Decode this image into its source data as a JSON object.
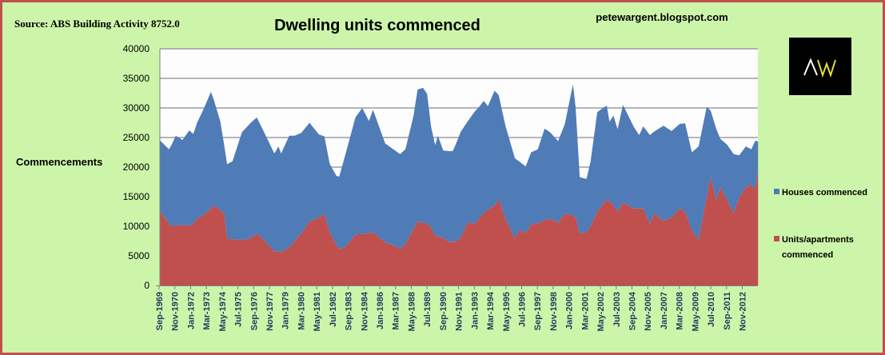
{
  "chart_data": {
    "type": "area",
    "stacked": true,
    "title": "Dwelling units commenced",
    "source": "Source: ABS Building Activity 8752.0",
    "watermark": "petewargent.blogspot.com",
    "logo_text": "AW",
    "ylabel": "Commencements",
    "xlabel": "",
    "ylim": [
      0,
      40000
    ],
    "yticks": [
      0,
      5000,
      10000,
      15000,
      20000,
      25000,
      30000,
      35000,
      40000
    ],
    "grid": true,
    "legend_position": "right",
    "xtick_labels": [
      "Sep-1969",
      "Nov-1970",
      "Jan-1972",
      "Mar-1973",
      "May-1974",
      "Jul-1975",
      "Sep-1976",
      "Nov-1977",
      "Jan-1979",
      "Mar-1980",
      "May-1981",
      "Jul-1982",
      "Sep-1983",
      "Nov-1984",
      "Jan-1986",
      "Mar-1987",
      "May-1988",
      "Jul-1989",
      "Sep-1990",
      "Nov-1991",
      "Jan-1993",
      "Mar-1994",
      "May-1995",
      "Jul-1996",
      "Sep-1997",
      "Nov-1998",
      "Jan-2000",
      "Mar-2001",
      "May-2002",
      "Jul-2003",
      "Sep-2004",
      "Nov-2005",
      "Jan-2007",
      "Mar-2008",
      "May-2009",
      "Jul-2010",
      "Sep-2011",
      "Nov-2012"
    ],
    "x": [
      1969.7,
      1970.4,
      1970.6,
      1970.9,
      1971.4,
      1971.9,
      1972.2,
      1972.5,
      1973.0,
      1973.5,
      1973.7,
      1974.2,
      1974.5,
      1974.7,
      1975.1,
      1975.8,
      1976.5,
      1976.9,
      1977.5,
      1978.2,
      1978.5,
      1978.7,
      1979.3,
      1979.7,
      1980.2,
      1980.8,
      1981.5,
      1981.9,
      1982.3,
      1982.8,
      1983.0,
      1983.5,
      1984.2,
      1984.7,
      1985.2,
      1985.5,
      1986.4,
      1987.2,
      1987.5,
      1987.9,
      1988.5,
      1988.8,
      1989.2,
      1989.5,
      1989.8,
      1990.1,
      1990.3,
      1990.7,
      1991.1,
      1991.4,
      1991.6,
      1992.0,
      1992.5,
      1993.0,
      1993.4,
      1993.7,
      1994.0,
      1994.5,
      1994.8,
      1995.3,
      1996.0,
      1996.3,
      1996.8,
      1997.2,
      1997.7,
      1998.2,
      1998.6,
      1999.2,
      1999.7,
      2000.3,
      2000.5,
      2000.8,
      2001.3,
      2001.6,
      2002.1,
      2002.8,
      2003.0,
      2003.3,
      2003.6,
      2004.0,
      2004.8,
      2005.2,
      2005.5,
      2006.0,
      2006.3,
      2007.0,
      2007.6,
      2008.2,
      2008.6,
      2009.1,
      2009.6,
      2010.2,
      2010.5,
      2010.9,
      2011.2,
      2011.7,
      2012.2,
      2012.6,
      2013.1,
      2013.5,
      2013.8,
      2014.0
    ],
    "series": [
      {
        "name": "Units/apartments commenced",
        "color": "#c0504d",
        "values": [
          12700,
          10500,
          10000,
          10100,
          10200,
          10100,
          10500,
          11300,
          12000,
          13000,
          13500,
          12800,
          12000,
          8000,
          7800,
          7700,
          8000,
          8800,
          7500,
          5700,
          5800,
          5600,
          6400,
          7500,
          8800,
          10800,
          11500,
          12000,
          9000,
          6800,
          6100,
          6600,
          8600,
          8700,
          8800,
          9000,
          7300,
          6600,
          6100,
          7000,
          9500,
          10800,
          10600,
          10400,
          9800,
          8400,
          8300,
          8000,
          7400,
          7400,
          7400,
          8100,
          10600,
          10400,
          11500,
          12200,
          12800,
          13500,
          14600,
          11300,
          7900,
          9300,
          8900,
          10300,
          10500,
          11000,
          11300,
          10600,
          12200,
          11800,
          11500,
          8800,
          9000,
          10000,
          12500,
          14500,
          14300,
          13500,
          12500,
          14000,
          13000,
          13000,
          13000,
          10400,
          12200,
          10900,
          11500,
          13000,
          12500,
          9300,
          7700,
          15000,
          18400,
          14400,
          16600,
          14500,
          12200,
          14900,
          16600,
          17100,
          16200,
          19600
        ]
      },
      {
        "name": "Houses commenced",
        "color": "#4f7bb7",
        "values": [
          11900,
          12500,
          13800,
          15200,
          14400,
          16100,
          15100,
          16300,
          18000,
          19700,
          18000,
          14900,
          11500,
          12500,
          13200,
          18200,
          19600,
          19600,
          18100,
          16600,
          17700,
          16700,
          18900,
          17800,
          17000,
          16700,
          14000,
          13200,
          11500,
          11700,
          12300,
          15900,
          19800,
          21300,
          19000,
          20700,
          16700,
          16100,
          16100,
          16000,
          19200,
          22300,
          22800,
          22000,
          17000,
          15300,
          17000,
          14800,
          15300,
          15300,
          16300,
          17900,
          17100,
          18900,
          18800,
          19000,
          17500,
          19400,
          17600,
          15700,
          13600,
          11700,
          11200,
          12200,
          12500,
          15500,
          14600,
          13800,
          15100,
          22200,
          18500,
          9500,
          9000,
          10900,
          16800,
          15900,
          13400,
          15200,
          13900,
          16500,
          13800,
          12400,
          13900,
          15000,
          13800,
          16100,
          14600,
          14300,
          14900,
          13200,
          15800,
          15200,
          11100,
          12100,
          8200,
          9300,
          10000,
          7100,
          6900,
          5900,
          8300,
          4700
        ]
      }
    ],
    "legend": {
      "houses": "Houses commenced",
      "units_line1": "Units/apartments",
      "units_line2": "commenced"
    }
  }
}
